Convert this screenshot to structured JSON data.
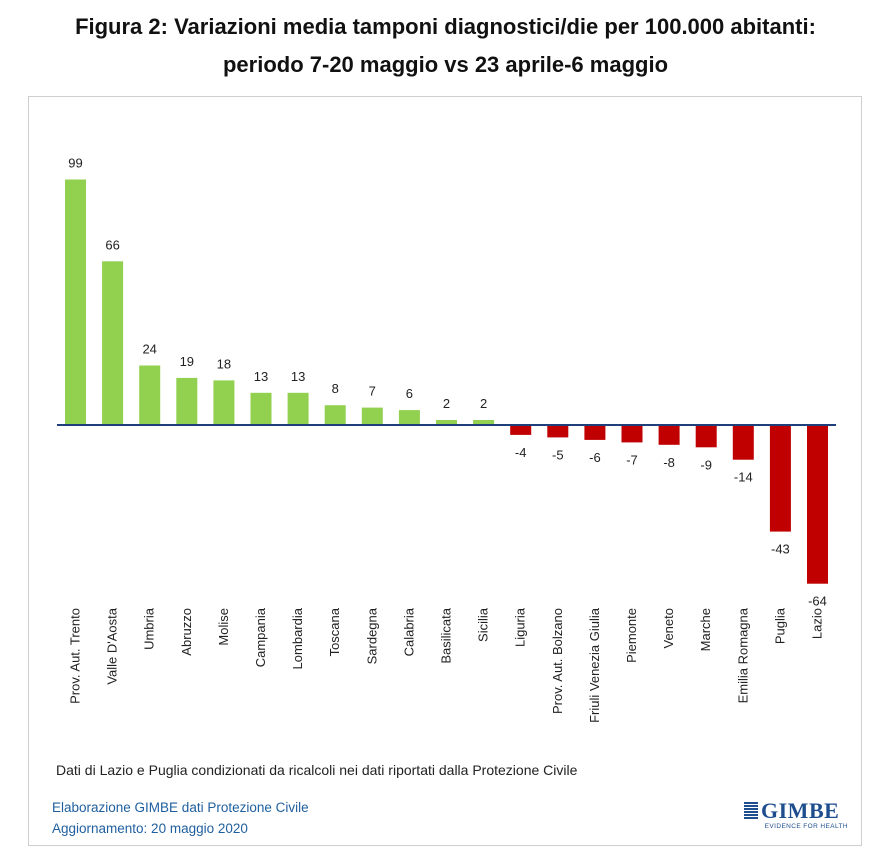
{
  "header": {
    "title_line1": "Figura 2: Variazioni media tamponi diagnostici/die per 100.000 abitanti:",
    "title_line2": "periodo 7-20 maggio vs 23 aprile-6 maggio"
  },
  "footer": {
    "note": "Dati di Lazio e Puglia condizionati da ricalcoli nei dati riportati dalla Protezione Civile",
    "source": "Elaborazione GIMBE dati Protezione Civile",
    "updated": "Aggiornamento: 20 maggio 2020",
    "logo_text": "GIMBE",
    "logo_tagline": "EVIDENCE FOR HEALTH"
  },
  "colors": {
    "positive": "#92d050",
    "negative": "#c00000",
    "axis": "#1f3f7a"
  },
  "chart_data": {
    "type": "bar",
    "title": "Figura 2: Variazioni media tamponi diagnostici/die per 100.000 abitanti: periodo 7-20 maggio vs 23 aprile-6 maggio",
    "xlabel": "",
    "ylabel": "",
    "ylim": [
      -64,
      99
    ],
    "grid": false,
    "legend": "none",
    "categories": [
      "Prov. Aut. Trento",
      "Valle D'Aosta",
      "Umbria",
      "Abruzzo",
      "Molise",
      "Campania",
      "Lombardia",
      "Toscana",
      "Sardegna",
      "Calabria",
      "Basilicata",
      "Sicilia",
      "Liguria",
      "Prov. Aut. Bolzano",
      "Friuli Venezia Giulia",
      "Piemonte",
      "Veneto",
      "Marche",
      "Emilia Romagna",
      "Puglia",
      "Lazio"
    ],
    "values": [
      99,
      66,
      24,
      19,
      18,
      13,
      13,
      8,
      7,
      6,
      2,
      2,
      -4,
      -5,
      -6,
      -7,
      -8,
      -9,
      -14,
      -43,
      -64
    ]
  }
}
